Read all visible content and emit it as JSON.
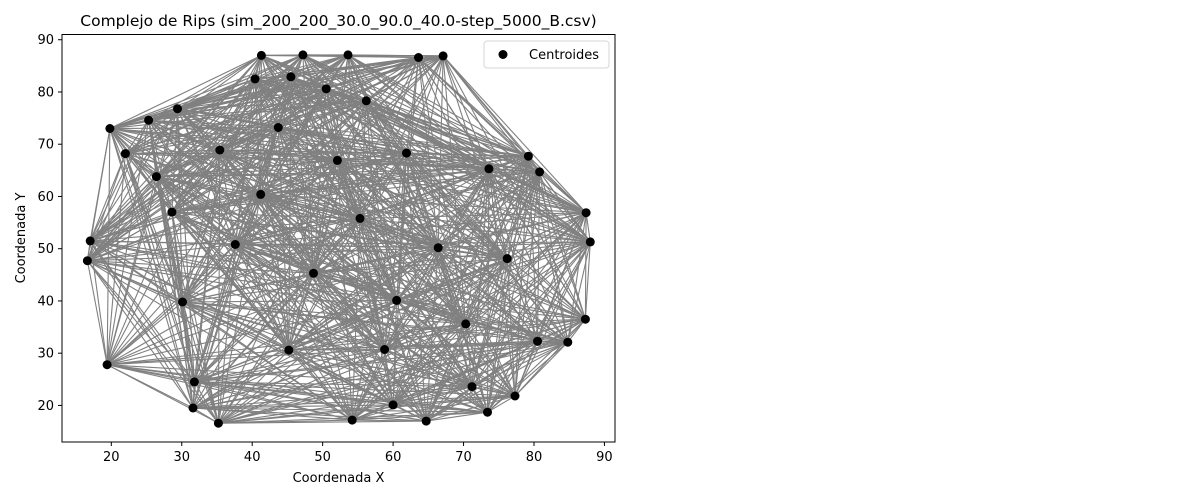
{
  "chart_data": {
    "type": "scatter",
    "title": "Complejo de Rips (sim_200_200_30.0_90.0_40.0-step_5000_B.csv)",
    "xlabel": "Coordenada X",
    "ylabel": "Coordenada Y",
    "xlim": [
      13,
      91.5
    ],
    "ylim": [
      13,
      91
    ],
    "xticks": [
      20,
      30,
      40,
      50,
      60,
      70,
      80,
      90
    ],
    "yticks": [
      20,
      30,
      40,
      50,
      60,
      70,
      80,
      90
    ],
    "grid": false,
    "legend": {
      "position": "top-right",
      "entries": [
        "Centroides"
      ]
    },
    "colors": {
      "points": "#000000",
      "edges": "#808080"
    },
    "series": [
      {
        "name": "Centroides",
        "points": [
          [
            19.8,
            73.0
          ],
          [
            17.0,
            51.5
          ],
          [
            16.6,
            47.7
          ],
          [
            19.4,
            27.8
          ],
          [
            31.6,
            19.5
          ],
          [
            35.2,
            16.6
          ],
          [
            54.2,
            17.2
          ],
          [
            64.7,
            17.0
          ],
          [
            73.4,
            18.7
          ],
          [
            77.3,
            21.8
          ],
          [
            84.8,
            32.1
          ],
          [
            87.3,
            36.5
          ],
          [
            88.0,
            51.3
          ],
          [
            87.4,
            56.9
          ],
          [
            79.2,
            67.7
          ],
          [
            67.1,
            86.9
          ],
          [
            63.6,
            86.6
          ],
          [
            53.6,
            87.1
          ],
          [
            47.2,
            87.1
          ],
          [
            41.3,
            87.0
          ],
          [
            29.4,
            76.8
          ],
          [
            25.3,
            74.6
          ],
          [
            22.0,
            68.2
          ],
          [
            26.4,
            63.8
          ],
          [
            30.1,
            39.8
          ],
          [
            31.8,
            24.5
          ],
          [
            40.4,
            82.5
          ],
          [
            45.5,
            82.9
          ],
          [
            50.5,
            80.6
          ],
          [
            56.2,
            78.3
          ],
          [
            61.9,
            68.3
          ],
          [
            73.6,
            65.3
          ],
          [
            80.8,
            64.7
          ],
          [
            80.5,
            32.3
          ],
          [
            71.2,
            23.6
          ],
          [
            60.0,
            20.1
          ],
          [
            45.2,
            30.6
          ],
          [
            48.7,
            45.3
          ],
          [
            55.3,
            55.8
          ],
          [
            60.5,
            40.1
          ],
          [
            41.2,
            60.4
          ],
          [
            37.6,
            50.8
          ],
          [
            66.4,
            50.2
          ],
          [
            52.1,
            66.9
          ],
          [
            43.7,
            73.2
          ],
          [
            70.3,
            35.6
          ],
          [
            58.8,
            30.7
          ],
          [
            35.4,
            68.9
          ],
          [
            76.2,
            48.1
          ],
          [
            28.6,
            57.0
          ]
        ]
      }
    ]
  }
}
